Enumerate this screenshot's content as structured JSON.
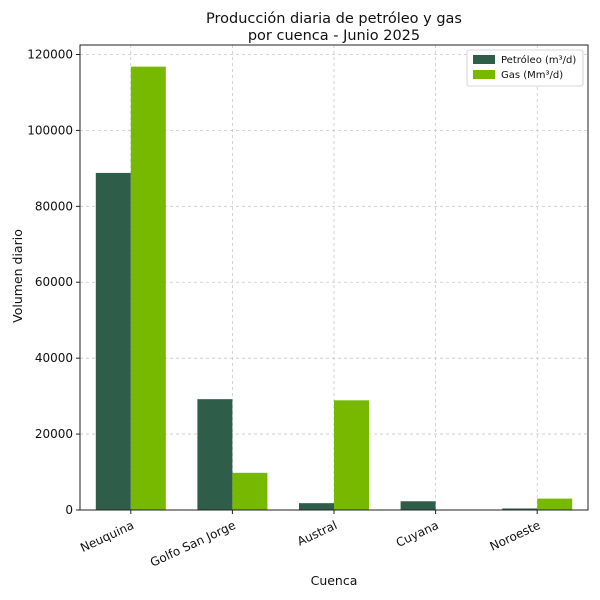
{
  "chart_data": {
    "type": "bar",
    "title_lines": [
      "Producción diaria de petróleo y gas",
      "por cuenca - Junio 2025"
    ],
    "xlabel": "Cuenca",
    "ylabel": "Volumen diario",
    "categories": [
      "Neuquina",
      "Golfo San Jorge",
      "Austral",
      "Cuyana",
      "Noroeste"
    ],
    "series": [
      {
        "name": "Petróleo (m³/d)",
        "color": "#2e5e4a",
        "values": [
          88800,
          29200,
          1800,
          2300,
          400
        ]
      },
      {
        "name": "Gas (Mm³/d)",
        "color": "#76b900",
        "values": [
          116800,
          9800,
          28900,
          0,
          3000
        ]
      }
    ],
    "ylim": [
      0,
      122500
    ],
    "yticks": [
      0,
      20000,
      40000,
      60000,
      80000,
      100000,
      120000
    ],
    "grid": true,
    "legend_position": "top-right"
  }
}
